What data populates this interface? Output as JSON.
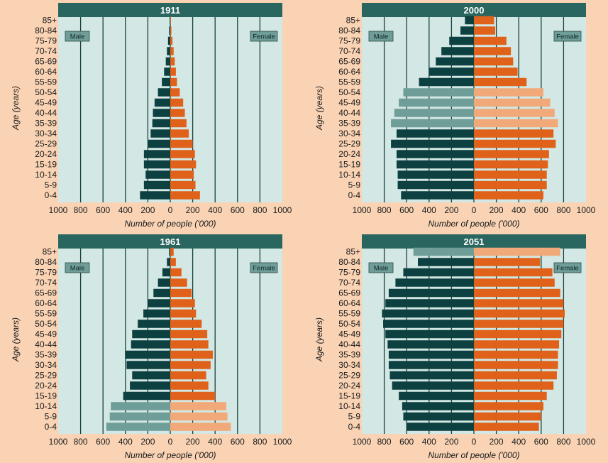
{
  "chart_data": [
    {
      "type": "bar",
      "title": "1911",
      "xlabel": "Number of people ('000)",
      "ylabel": "Age (years)",
      "xlim": [
        -1000,
        1000
      ],
      "xticks": [
        "1000",
        "800",
        "600",
        "400",
        "200",
        "0",
        "200",
        "400",
        "600",
        "800",
        "1000"
      ],
      "male_label": "Male",
      "female_label": "Female",
      "categories": [
        "0-4",
        "5-9",
        "10-14",
        "15-19",
        "20-24",
        "25-29",
        "30-34",
        "35-39",
        "40-44",
        "45-49",
        "50-54",
        "55-59",
        "60-64",
        "65-69",
        "70-74",
        "75-79",
        "80-84",
        "85+"
      ],
      "series": [
        {
          "name": "Male",
          "values": [
            270,
            235,
            220,
            235,
            235,
            200,
            175,
            160,
            155,
            140,
            110,
            75,
            55,
            40,
            30,
            20,
            10,
            5
          ]
        },
        {
          "name": "Female",
          "values": [
            265,
            225,
            210,
            230,
            220,
            200,
            165,
            145,
            130,
            115,
            85,
            60,
            50,
            40,
            30,
            20,
            10,
            5
          ]
        }
      ],
      "highlight": []
    },
    {
      "type": "bar",
      "title": "2000",
      "xlabel": "Number of people ('000)",
      "ylabel": "Age (years)",
      "xlim": [
        -1000,
        1000
      ],
      "xticks": [
        "1000",
        "800",
        "600",
        "400",
        "200",
        "0",
        "200",
        "400",
        "600",
        "800",
        "1000"
      ],
      "male_label": "Male",
      "female_label": "Female",
      "categories": [
        "0-4",
        "5-9",
        "10-14",
        "15-19",
        "20-24",
        "25-29",
        "30-34",
        "35-39",
        "40-44",
        "45-49",
        "50-54",
        "55-59",
        "60-64",
        "65-69",
        "70-74",
        "75-79",
        "80-84",
        "85+"
      ],
      "series": [
        {
          "name": "Male",
          "values": [
            650,
            680,
            680,
            690,
            690,
            740,
            690,
            740,
            710,
            670,
            630,
            490,
            400,
            340,
            290,
            220,
            120,
            80
          ]
        },
        {
          "name": "Female",
          "values": [
            620,
            650,
            650,
            660,
            670,
            730,
            710,
            750,
            720,
            680,
            620,
            470,
            390,
            350,
            330,
            290,
            190,
            180
          ]
        }
      ],
      "highlight": [
        "35-39",
        "40-44",
        "45-49",
        "50-54"
      ]
    },
    {
      "type": "bar",
      "title": "1961",
      "xlabel": "Number of people ('000)",
      "ylabel": "Age (years)",
      "xlim": [
        -1000,
        1000
      ],
      "xticks": [
        "1000",
        "800",
        "600",
        "400",
        "200",
        "0",
        "200",
        "400",
        "600",
        "800",
        "1000"
      ],
      "male_label": "Male",
      "female_label": "Female",
      "categories": [
        "0-4",
        "5-9",
        "10-14",
        "15-19",
        "20-24",
        "25-29",
        "30-34",
        "35-39",
        "40-44",
        "45-49",
        "50-54",
        "55-59",
        "60-64",
        "65-69",
        "70-74",
        "75-79",
        "80-84",
        "85+"
      ],
      "series": [
        {
          "name": "Male",
          "values": [
            570,
            540,
            530,
            420,
            360,
            340,
            390,
            400,
            350,
            340,
            290,
            240,
            200,
            150,
            110,
            70,
            30,
            10
          ]
        },
        {
          "name": "Female",
          "values": [
            540,
            510,
            500,
            400,
            340,
            320,
            360,
            380,
            340,
            330,
            280,
            230,
            220,
            190,
            150,
            100,
            50,
            30
          ]
        }
      ],
      "highlight": [
        "0-4",
        "5-9",
        "10-14"
      ]
    },
    {
      "type": "bar",
      "title": "2051",
      "xlabel": "Number of people ('000)",
      "ylabel": "Age (years)",
      "xlim": [
        -1000,
        1000
      ],
      "xticks": [
        "1000",
        "800",
        "600",
        "400",
        "200",
        "0",
        "200",
        "400",
        "600",
        "800",
        "1000"
      ],
      "male_label": "Male",
      "female_label": "Female",
      "categories": [
        "0-4",
        "5-9",
        "10-14",
        "15-19",
        "20-24",
        "25-29",
        "30-34",
        "35-39",
        "40-44",
        "45-49",
        "50-54",
        "55-59",
        "60-64",
        "65-69",
        "70-74",
        "75-79",
        "80-84",
        "85+"
      ],
      "series": [
        {
          "name": "Male",
          "values": [
            600,
            630,
            640,
            670,
            730,
            750,
            760,
            760,
            770,
            790,
            810,
            820,
            790,
            760,
            700,
            630,
            500,
            540
          ]
        },
        {
          "name": "Female",
          "values": [
            580,
            600,
            620,
            650,
            710,
            740,
            750,
            750,
            760,
            780,
            800,
            810,
            800,
            770,
            720,
            700,
            590,
            770
          ]
        }
      ],
      "highlight": [
        "85+"
      ]
    }
  ],
  "colors": {
    "background": "#f9d3b4",
    "plot": "#d3e7e4",
    "plot_edge": "#b9d6d2",
    "title_bar": "#2a6660",
    "male": "#0d4040",
    "male_highlight": "#6f9e98",
    "female": "#e0621a",
    "female_highlight": "#f1a97a",
    "gridline": "#17403c",
    "text": "#1a1a1a",
    "label_box": "#6f9e98"
  }
}
